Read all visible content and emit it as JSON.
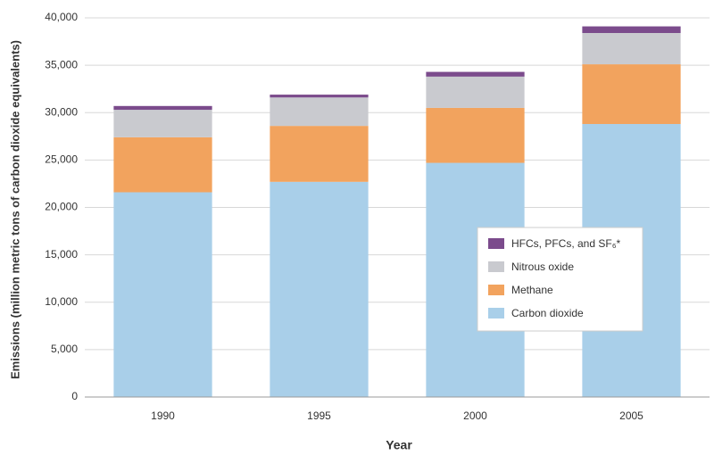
{
  "chart_data": {
    "type": "stacked_bar",
    "y_label": "Emissions (million metric tons of carbon dioxide equivalents)",
    "x_label": "Year",
    "categories": [
      "1990",
      "1995",
      "2000",
      "2005"
    ],
    "series": [
      {
        "name": "Carbon dioxide",
        "color": "#a9cfe9",
        "values": [
          21600,
          22700,
          24700,
          28800
        ]
      },
      {
        "name": "Methane",
        "color": "#f2a35e",
        "values": [
          5800,
          5900,
          5800,
          6300
        ]
      },
      {
        "name": "Nitrous oxide",
        "color": "#c9cacf",
        "values": [
          2900,
          3000,
          3300,
          3300
        ]
      },
      {
        "name": "HFCs, PFCs, and SF₆*",
        "color": "#7b4b8c",
        "values": [
          400,
          300,
          500,
          700
        ]
      }
    ],
    "ylim": [
      0,
      40000
    ],
    "yticks": [
      0,
      {
        "value": 5000,
        "label": "5,000"
      },
      {
        "value": 10000,
        "label": "10,000"
      },
      {
        "value": 15000,
        "label": "15,000"
      },
      {
        "value": 20000,
        "label": "20,000"
      },
      {
        "value": 25000,
        "label": "25,000"
      },
      {
        "value": 30000,
        "label": "30,000"
      },
      {
        "value": 35000,
        "label": "35,000"
      },
      {
        "value": 40000,
        "label": "40,000"
      }
    ],
    "grid": true
  }
}
